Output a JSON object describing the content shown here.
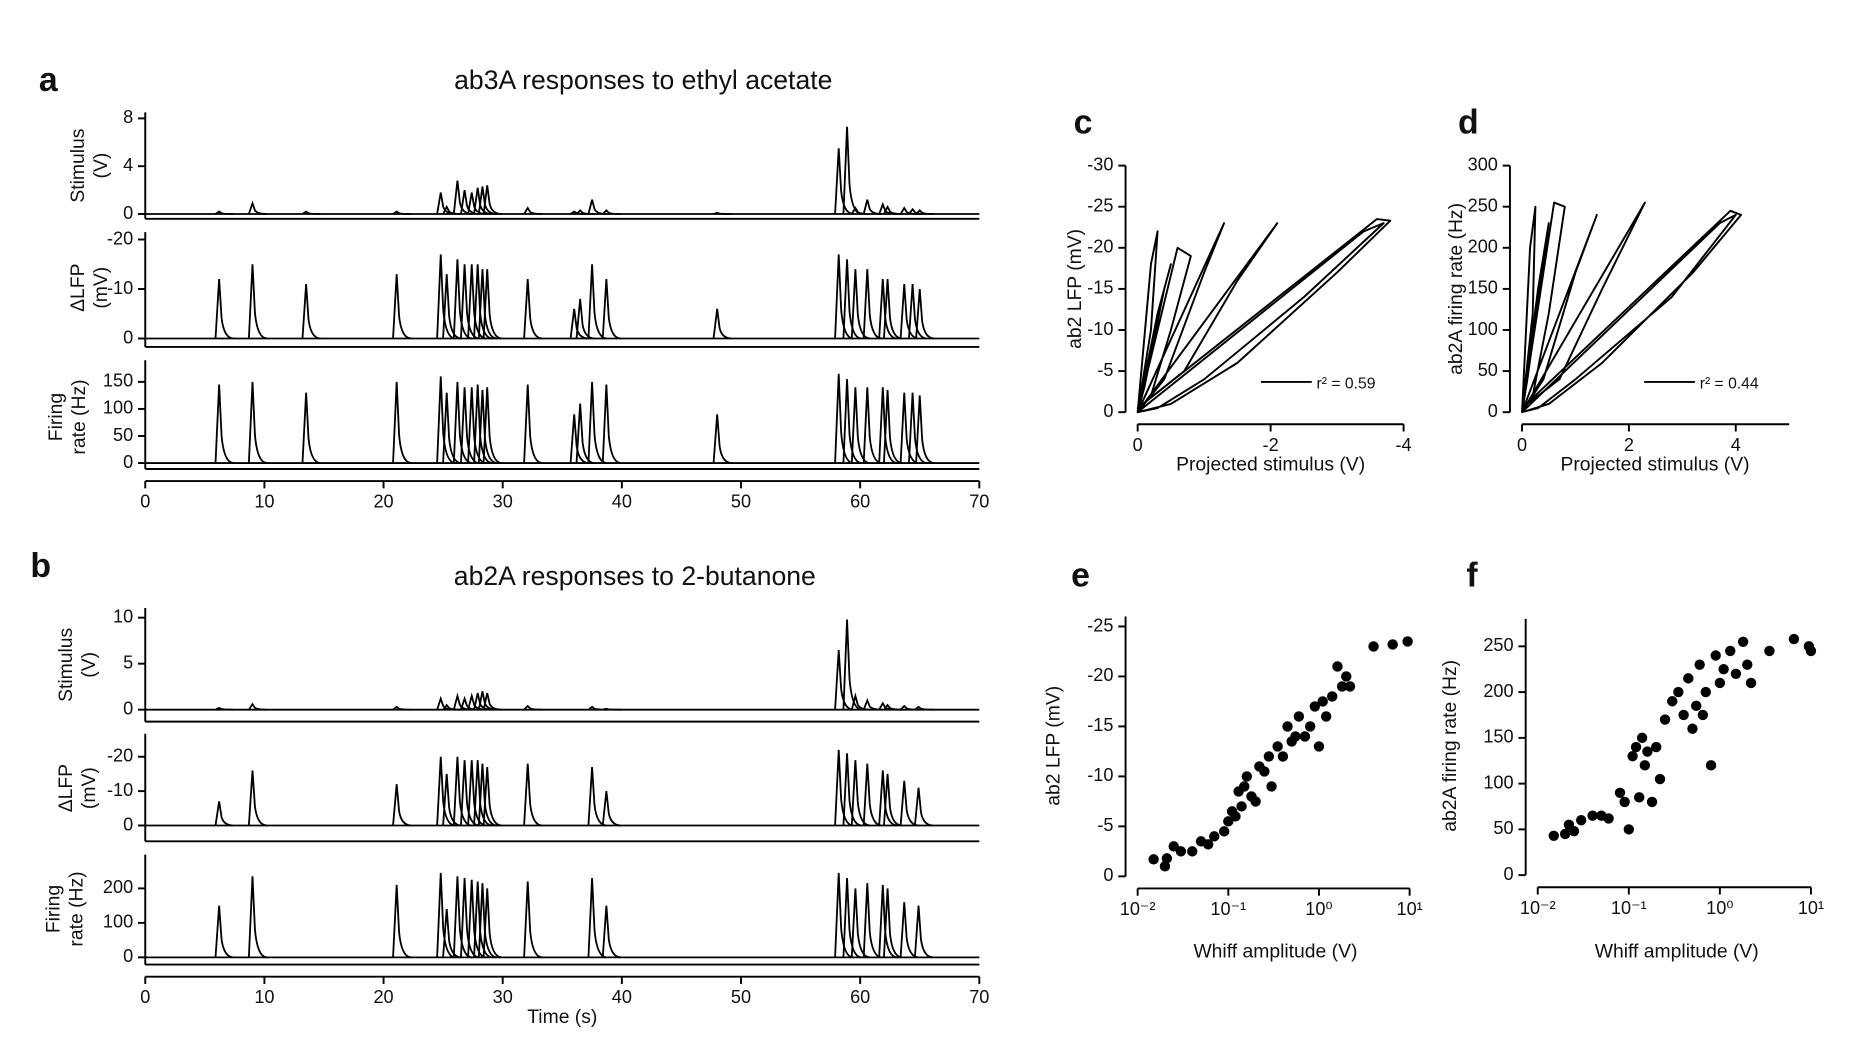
{
  "chart_data": [
    {
      "type": "spike",
      "panel": "a",
      "title": "ab3A responses to ethyl acetate",
      "ylabel": [
        "Stimulus",
        "(V)"
      ],
      "x": [
        6.2,
        9.0,
        13.5,
        21.1,
        24.8,
        25.3,
        26.2,
        26.8,
        27.4,
        27.9,
        28.3,
        28.7,
        32.1,
        36.0,
        36.5,
        37.5,
        38.7,
        48.0,
        58.2,
        58.9,
        59.6,
        60.6,
        61.9,
        62.3,
        63.7,
        64.4,
        65.0
      ],
      "values": [
        0.2,
        0.9,
        0.2,
        0.2,
        1.8,
        0.6,
        2.8,
        2.0,
        1.8,
        2.2,
        2.3,
        2.4,
        0.5,
        0.2,
        0.3,
        1.2,
        0.3,
        0.1,
        5.5,
        7.3,
        0.5,
        1.2,
        0.8,
        0.6,
        0.5,
        0.4,
        0.3
      ],
      "xlim": [
        0,
        70
      ],
      "ylim": [
        -0.4,
        8.5
      ],
      "yticks": [
        0,
        4,
        8
      ],
      "color": "#000000"
    },
    {
      "type": "spike",
      "panel": null,
      "ylabel": [
        "ΔLFP",
        "(mV)"
      ],
      "x": [
        6.2,
        9.0,
        13.5,
        21.1,
        24.8,
        25.3,
        26.2,
        26.8,
        27.4,
        27.9,
        28.3,
        28.7,
        32.1,
        36.0,
        36.5,
        37.5,
        38.7,
        48.0,
        58.2,
        58.9,
        59.6,
        60.6,
        61.9,
        62.3,
        63.7,
        64.4,
        65.0
      ],
      "values": [
        -12,
        -15,
        -11,
        -13,
        -17,
        -13,
        -16,
        -15,
        -15,
        -15,
        -14,
        -14,
        -12,
        -6,
        -8,
        -15,
        -12,
        -6,
        -17,
        -16,
        -14,
        -14,
        -12,
        -12,
        -11,
        -11,
        -10
      ],
      "xlim": [
        0,
        70
      ],
      "ylim": [
        1.7,
        -21.5
      ],
      "yticks": [
        -20,
        -10,
        0
      ],
      "color": "#000000"
    },
    {
      "type": "spike",
      "panel": null,
      "ylabel": [
        "Firing",
        "rate (Hz)"
      ],
      "x": [
        6.2,
        9.0,
        13.5,
        21.1,
        24.8,
        25.3,
        26.2,
        26.8,
        27.4,
        27.9,
        28.3,
        28.7,
        32.1,
        36.0,
        36.5,
        37.5,
        38.7,
        48.0,
        58.2,
        58.9,
        59.6,
        60.6,
        61.9,
        62.3,
        63.7,
        64.4,
        65.0
      ],
      "values": [
        145,
        150,
        130,
        150,
        160,
        130,
        150,
        140,
        140,
        145,
        135,
        140,
        145,
        90,
        110,
        150,
        145,
        90,
        165,
        155,
        140,
        140,
        140,
        135,
        130,
        130,
        125
      ],
      "xlim": [
        0,
        70
      ],
      "xticks": [
        0,
        10,
        20,
        30,
        40,
        50,
        60,
        70
      ],
      "ylim": [
        -11,
        190
      ],
      "yticks": [
        0,
        50,
        100,
        150
      ],
      "color": "#000000"
    },
    {
      "type": "spike",
      "panel": "b",
      "title": "ab2A responses to 2-butanone",
      "ylabel": [
        "Stimulus",
        "(V)"
      ],
      "x": [
        6.2,
        9.0,
        21.1,
        24.8,
        25.3,
        26.2,
        26.8,
        27.4,
        27.9,
        28.3,
        28.7,
        32.1,
        37.5,
        38.7,
        58.2,
        58.9,
        59.6,
        60.6,
        61.9,
        62.3,
        63.7,
        64.9
      ],
      "values": [
        0.2,
        0.6,
        0.3,
        1.2,
        0.5,
        1.5,
        1.2,
        1.5,
        1.8,
        2.0,
        1.8,
        0.4,
        0.3,
        0.1,
        6.5,
        9.8,
        1.5,
        1.0,
        0.7,
        0.5,
        0.4,
        0.3
      ],
      "xlim": [
        0,
        70
      ],
      "ylim": [
        -1.3,
        11.05
      ],
      "yticks": [
        0,
        5,
        10
      ],
      "color": "#000000"
    },
    {
      "type": "spike",
      "panel": null,
      "ylabel": [
        "ΔLFP",
        "(mV)"
      ],
      "x": [
        6.2,
        9.0,
        21.1,
        24.8,
        25.3,
        26.2,
        26.8,
        27.4,
        27.9,
        28.3,
        28.7,
        32.1,
        37.5,
        38.7,
        58.2,
        58.9,
        59.6,
        60.6,
        61.9,
        62.3,
        63.7,
        64.9
      ],
      "values": [
        -7,
        -16,
        -12,
        -20,
        -15,
        -20,
        -19,
        -19,
        -19,
        -18,
        -17,
        -18,
        -17,
        -10,
        -22,
        -21,
        -19,
        -18,
        -16,
        -15,
        -13,
        -11
      ],
      "xlim": [
        0,
        70
      ],
      "ylim": [
        4.6,
        -26.7
      ],
      "yticks": [
        -20,
        -10,
        0
      ],
      "color": "#000000"
    },
    {
      "type": "spike",
      "panel": null,
      "ylabel": [
        "Firing",
        "rate (Hz)"
      ],
      "xlabel": "Time (s)",
      "x": [
        6.2,
        9.0,
        21.1,
        24.8,
        25.3,
        26.2,
        26.8,
        27.4,
        27.9,
        28.3,
        28.7,
        32.1,
        37.5,
        38.7,
        58.2,
        58.9,
        59.6,
        60.6,
        61.9,
        62.3,
        63.7,
        64.9
      ],
      "values": [
        150,
        235,
        210,
        245,
        140,
        235,
        230,
        225,
        220,
        215,
        200,
        220,
        230,
        150,
        245,
        230,
        200,
        215,
        210,
        200,
        160,
        150
      ],
      "xlim": [
        0,
        70
      ],
      "xticks": [
        0,
        10,
        20,
        30,
        40,
        50,
        60,
        70
      ],
      "ylim": [
        -21,
        298
      ],
      "yticks": [
        0,
        100,
        200
      ],
      "color": "#000000"
    },
    {
      "type": "line",
      "panel": "c",
      "ylabel": "ab2 LFP (mV)",
      "xlabel": "Projected stimulus (V)",
      "annotation": "r² = 0.59",
      "x": [
        0,
        -0.3,
        -0.5,
        -0.4,
        -0.1,
        0,
        -0.6,
        -0.8,
        -0.5,
        -0.2,
        0,
        -1.3,
        -1.0,
        -0.4,
        0,
        -2.1,
        -1.5,
        -0.7,
        0,
        -3.6,
        -3.8,
        -3.0,
        -1.5,
        -0.5,
        0,
        -3.4,
        -3.7,
        -2.5,
        -1.0,
        -0.3,
        0,
        -0.2,
        -0.3,
        -0.2,
        0
      ],
      "values": [
        0,
        -12,
        -18,
        -15,
        -3,
        0,
        -20,
        -19,
        -10,
        -2,
        0,
        -23,
        -17,
        -4,
        0,
        -23,
        -16,
        -5,
        -0.5,
        -23.5,
        -23.3,
        -17,
        -6,
        -1,
        0,
        -22,
        -23,
        -14,
        -4,
        -0.5,
        0,
        -10,
        -22,
        -18,
        0
      ],
      "xlim": [
        0,
        -4
      ],
      "xticks": [
        0,
        -2,
        -4
      ],
      "ylim": [
        0,
        -30
      ],
      "yticks": [
        0,
        -5,
        -10,
        -15,
        -20,
        -25,
        -30
      ],
      "color": "#000000"
    },
    {
      "type": "line",
      "panel": "d",
      "ylabel": "ab2A firing rate (Hz)",
      "xlabel": "Projected stimulus (V)",
      "annotation": "r² = 0.44",
      "x": [
        0,
        0.3,
        0.5,
        0.4,
        0.1,
        0,
        0.6,
        0.8,
        0.5,
        0.2,
        0,
        1.4,
        1.0,
        0.4,
        0,
        2.3,
        1.5,
        0.7,
        0,
        3.9,
        4.1,
        3.2,
        1.5,
        0.5,
        0,
        3.7,
        4.0,
        2.8,
        1.0,
        0.3,
        0,
        0.2,
        0.25,
        0.15,
        0
      ],
      "values": [
        0,
        150,
        230,
        180,
        40,
        0,
        255,
        250,
        120,
        20,
        0,
        240,
        170,
        40,
        0,
        255,
        150,
        40,
        5,
        245,
        240,
        170,
        60,
        10,
        0,
        230,
        240,
        140,
        40,
        5,
        0,
        120,
        250,
        200,
        0
      ],
      "xlim": [
        0,
        5
      ],
      "xticks": [
        0,
        2,
        4
      ],
      "ylim": [
        0,
        300
      ],
      "yticks": [
        0,
        50,
        100,
        150,
        200,
        250,
        300
      ],
      "color": "#000000"
    },
    {
      "type": "scatter",
      "panel": "e",
      "ylabel": "ab2 LFP (mV)",
      "xlabel": "Whiff amplitude (V)",
      "log_x": true,
      "x": [
        0.015,
        0.02,
        0.021,
        0.025,
        0.03,
        0.04,
        0.05,
        0.06,
        0.07,
        0.09,
        0.1,
        0.11,
        0.12,
        0.13,
        0.14,
        0.15,
        0.16,
        0.18,
        0.2,
        0.22,
        0.25,
        0.28,
        0.3,
        0.35,
        0.4,
        0.45,
        0.5,
        0.55,
        0.6,
        0.7,
        0.8,
        0.9,
        1.0,
        1.1,
        1.2,
        1.4,
        1.6,
        1.8,
        2.0,
        2.2,
        4,
        6.5,
        9.5
      ],
      "values": [
        -1.7,
        -1,
        -1.8,
        -3,
        -2.5,
        -2.5,
        -3.5,
        -3.2,
        -4,
        -4.5,
        -5.5,
        -6.5,
        -6,
        -8.5,
        -7,
        -9,
        -10,
        -8,
        -7.5,
        -11,
        -10.5,
        -12,
        -9,
        -13,
        -12,
        -15,
        -13.5,
        -14,
        -16,
        -14,
        -15,
        -17,
        -13,
        -17.5,
        -16,
        -18,
        -21,
        -19,
        -20,
        -19,
        -23,
        -23.2,
        -23.5
      ],
      "xlim": [
        0.01,
        10
      ],
      "xticks": [
        {
          "value": 0.01,
          "label": "10⁻²"
        },
        {
          "value": 0.1,
          "label": "10⁻¹"
        },
        {
          "value": 1,
          "label": "10⁰"
        },
        {
          "value": 10,
          "label": "10¹"
        }
      ],
      "ylim": [
        0,
        -26
      ],
      "yticks": [
        0,
        -5,
        -10,
        -15,
        -20,
        -25
      ],
      "color": "#000000"
    },
    {
      "type": "scatter",
      "panel": "f",
      "ylabel": "ab2A firing rate (Hz)",
      "xlabel": "Whiff amplitude (V)",
      "log_x": true,
      "x": [
        0.015,
        0.02,
        0.022,
        0.025,
        0.03,
        0.04,
        0.05,
        0.06,
        0.08,
        0.09,
        0.1,
        0.11,
        0.12,
        0.13,
        0.14,
        0.15,
        0.16,
        0.18,
        0.2,
        0.22,
        0.25,
        0.3,
        0.35,
        0.4,
        0.45,
        0.5,
        0.55,
        0.6,
        0.65,
        0.7,
        0.8,
        0.9,
        1.0,
        1.1,
        1.3,
        1.5,
        1.8,
        2.0,
        2.2,
        3.5,
        6.5,
        9.5,
        10
      ],
      "values": [
        43,
        45,
        55,
        48,
        60,
        65,
        65,
        62,
        90,
        80,
        50,
        130,
        140,
        85,
        150,
        120,
        135,
        80,
        140,
        105,
        170,
        190,
        200,
        175,
        215,
        160,
        185,
        230,
        175,
        200,
        120,
        240,
        210,
        225,
        245,
        220,
        255,
        230,
        210,
        245,
        258,
        250,
        245
      ],
      "xlim": [
        0.01,
        10
      ],
      "xticks": [
        {
          "value": 0.01,
          "label": "10⁻²"
        },
        {
          "value": 0.1,
          "label": "10⁻¹"
        },
        {
          "value": 1,
          "label": "10⁰"
        },
        {
          "value": 10,
          "label": "10¹"
        }
      ],
      "ylim": [
        0,
        280
      ],
      "yticks": [
        0,
        50,
        100,
        150,
        200,
        250
      ],
      "color": "#000000"
    }
  ]
}
